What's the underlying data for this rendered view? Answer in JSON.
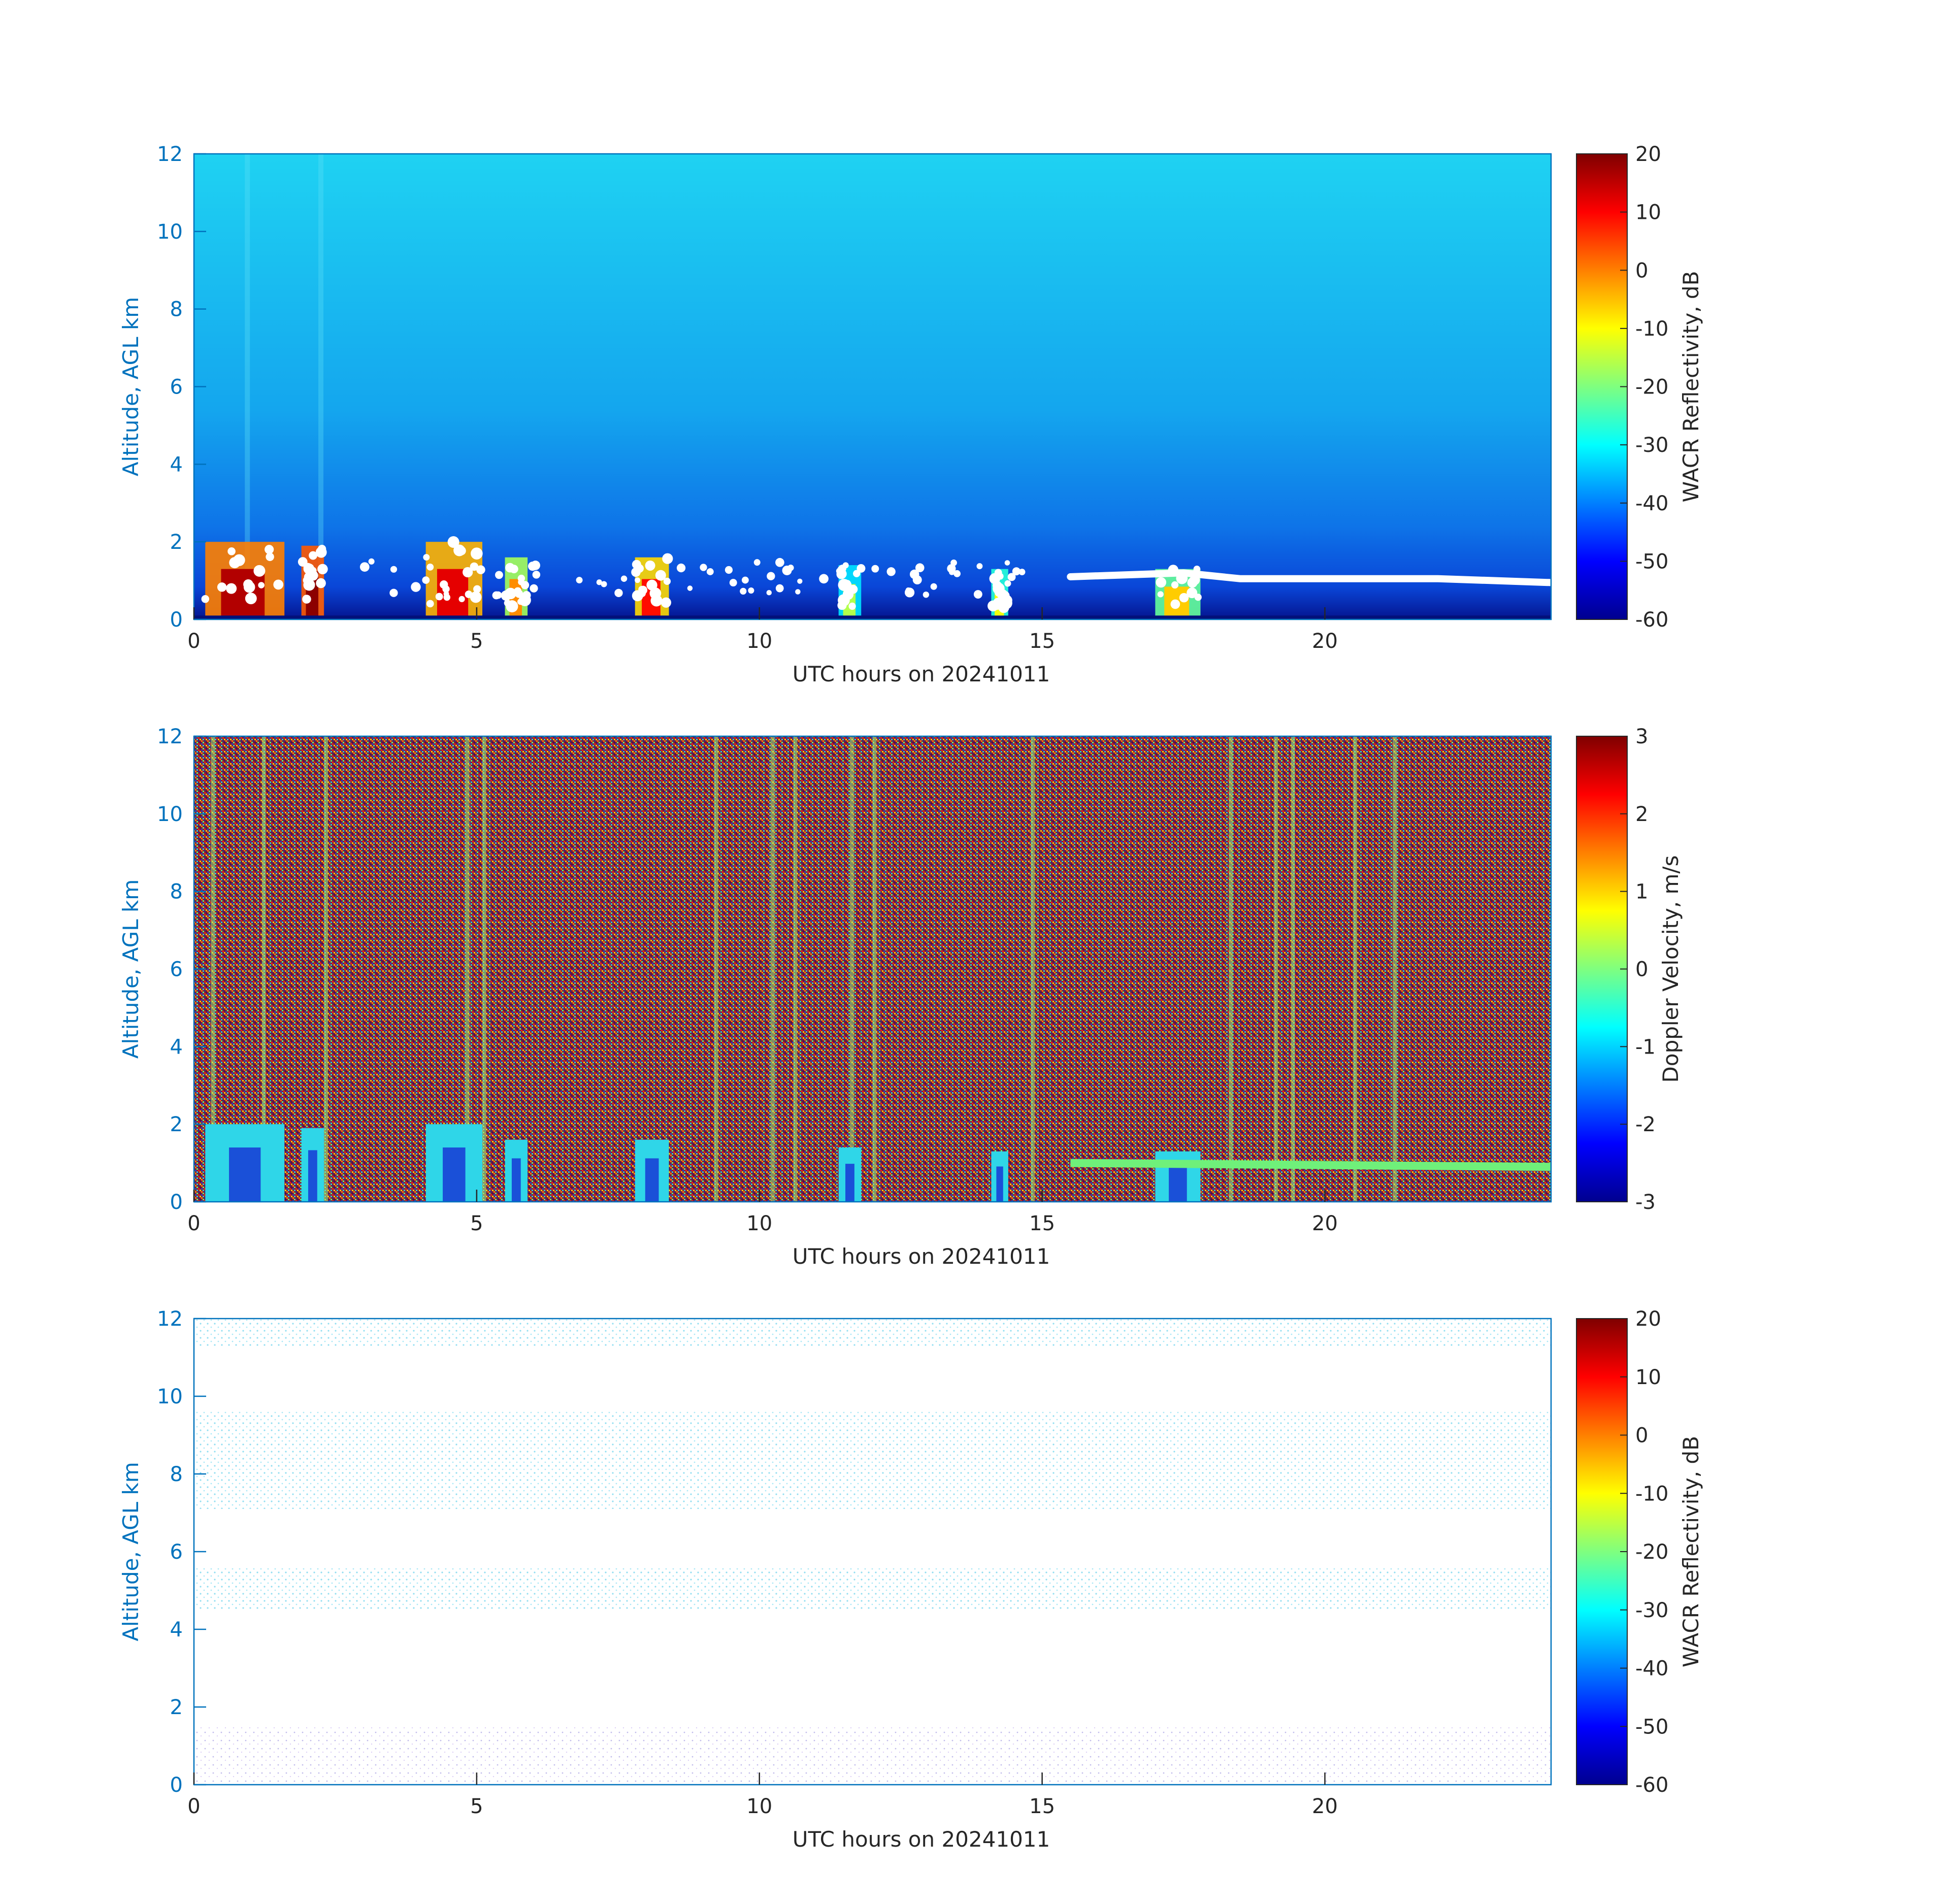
{
  "chart_data": [
    {
      "type": "heatmap",
      "panel": "top",
      "xlabel": "UTC hours on 20241011",
      "ylabel": "Altitude, AGL km",
      "xlim": [
        0,
        24
      ],
      "ylim": [
        0,
        12
      ],
      "xticks": [
        0,
        5,
        10,
        15,
        20
      ],
      "yticks": [
        0,
        2,
        4,
        6,
        8,
        10,
        12
      ],
      "colorbar": {
        "label": "WACR Reflectivity, dB",
        "range": [
          -60,
          20
        ],
        "ticks": [
          20,
          10,
          0,
          -10,
          -20,
          -30,
          -40,
          -50,
          -60
        ],
        "colormap": "jet"
      },
      "background": {
        "description_color": "#1ec8f0"
      },
      "cloud_features": [
        {
          "start": 0.2,
          "end": 1.6,
          "top": 2.0,
          "z": 12
        },
        {
          "start": 1.9,
          "end": 2.3,
          "top": 1.9,
          "z": 15
        },
        {
          "start": 4.1,
          "end": 5.1,
          "top": 2.0,
          "z": 8
        },
        {
          "start": 5.5,
          "end": 5.9,
          "top": 1.6,
          "z": -5
        },
        {
          "start": 7.8,
          "end": 8.4,
          "top": 1.6,
          "z": 5
        },
        {
          "start": 11.4,
          "end": 11.8,
          "top": 1.4,
          "z": -20
        },
        {
          "start": 14.1,
          "end": 14.4,
          "top": 1.3,
          "z": -15
        },
        {
          "start": 17.0,
          "end": 17.8,
          "top": 1.3,
          "z": -10
        }
      ],
      "layer_trace": [
        {
          "x": 15.5,
          "y": 1.1
        },
        {
          "x": 17.5,
          "y": 1.2
        },
        {
          "x": 18.5,
          "y": 1.05
        },
        {
          "x": 20.0,
          "y": 1.05
        },
        {
          "x": 22.0,
          "y": 1.05
        },
        {
          "x": 24.0,
          "y": 0.95
        }
      ]
    },
    {
      "type": "heatmap",
      "panel": "middle",
      "xlabel": "UTC hours on 20241011",
      "ylabel": "Altitude, AGL km",
      "xlim": [
        0,
        24
      ],
      "ylim": [
        0,
        12
      ],
      "xticks": [
        0,
        5,
        10,
        15,
        20
      ],
      "yticks": [
        0,
        2,
        4,
        6,
        8,
        10,
        12
      ],
      "colorbar": {
        "label": "Doppler Velocity, m/s",
        "range": [
          -3,
          3
        ],
        "ticks": [
          3,
          2,
          1,
          0,
          -1,
          -2,
          -3
        ],
        "colormap": "jet"
      },
      "vertical_streaks": [
        0.3,
        1.2,
        2.3,
        4.8,
        5.1,
        9.2,
        10.2,
        10.6,
        11.6,
        12.0,
        14.8,
        18.3,
        19.1,
        19.4,
        20.5,
        21.2
      ],
      "cloud_features": [
        {
          "start": 0.2,
          "end": 1.6,
          "top": 2.0
        },
        {
          "start": 1.9,
          "end": 2.3,
          "top": 1.9
        },
        {
          "start": 4.1,
          "end": 5.1,
          "top": 2.0
        },
        {
          "start": 5.5,
          "end": 5.9,
          "top": 1.6
        },
        {
          "start": 7.8,
          "end": 8.4,
          "top": 1.6
        },
        {
          "start": 11.4,
          "end": 11.8,
          "top": 1.4
        },
        {
          "start": 14.1,
          "end": 14.4,
          "top": 1.3
        },
        {
          "start": 17.0,
          "end": 17.8,
          "top": 1.3
        }
      ]
    },
    {
      "type": "heatmap",
      "panel": "bottom",
      "xlabel": "UTC hours on 20241011",
      "ylabel": "Altitude, AGL km",
      "xlim": [
        0,
        24
      ],
      "ylim": [
        0,
        12
      ],
      "xticks": [
        0,
        5,
        10,
        15,
        20
      ],
      "yticks": [
        0,
        2,
        4,
        6,
        8,
        10,
        12
      ],
      "colorbar": {
        "label": "WACR Reflectivity, dB",
        "range": [
          -60,
          20
        ],
        "ticks": [
          20,
          10,
          0,
          -10,
          -20,
          -30,
          -40,
          -50,
          -60
        ],
        "colormap": "jet"
      },
      "faint_bands": [
        {
          "y_low": 11.3,
          "y_high": 12.0
        },
        {
          "y_low": 7.1,
          "y_high": 9.6
        },
        {
          "y_low": 4.5,
          "y_high": 5.6
        },
        {
          "y_low": 0.0,
          "y_high": 1.5
        }
      ]
    }
  ],
  "colors": {
    "axis": "#0072bd",
    "text": "#262626",
    "white_speckle": "#ffffff"
  }
}
